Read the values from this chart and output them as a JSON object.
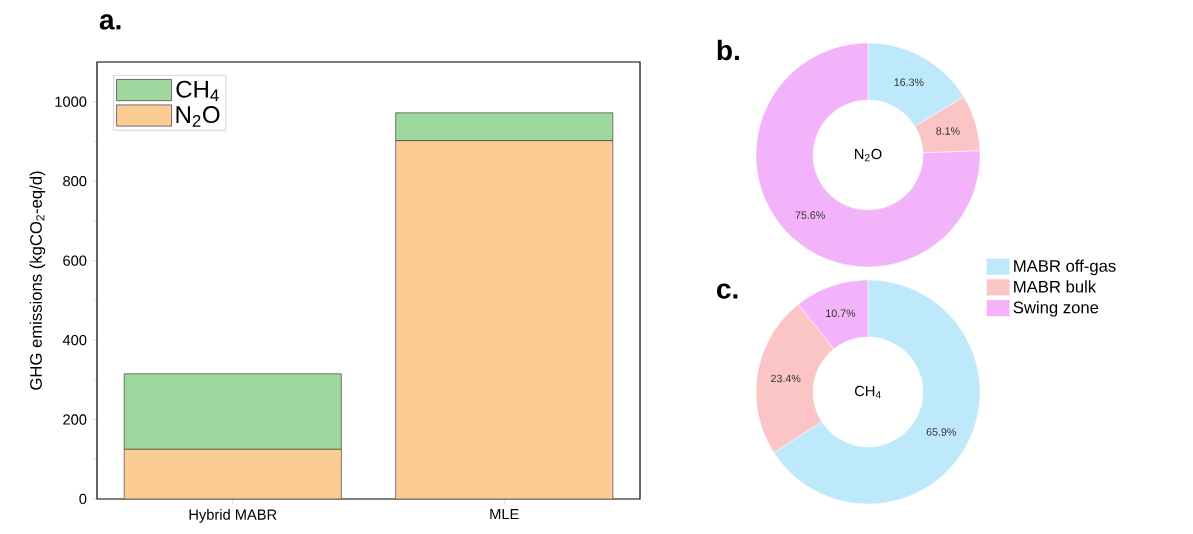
{
  "chart_data": [
    {
      "type": "bar",
      "title": "a.",
      "categories": [
        "Hybrid MABR",
        "MLE"
      ],
      "stacked": true,
      "ylabel": "GHG emissions (kgCO$_{2}$-eq/d)",
      "ylim": [
        0,
        1100
      ],
      "yticks": [
        0,
        200,
        400,
        600,
        800,
        1000
      ],
      "legend": "top left",
      "series": [
        {
          "name": "N$_{2}$O",
          "color": "#fdcc95",
          "values": [
            125,
            902
          ]
        },
        {
          "name": "CH$_{4}$",
          "color": "#9fd89e",
          "values": [
            190,
            70
          ]
        }
      ]
    },
    {
      "type": "donut",
      "title": "b.",
      "categories": [
        null,
        null,
        null
      ],
      "values": [
        16.3,
        8.1,
        75.6
      ],
      "colors": [
        "#bde9fb",
        "#fcc5c5",
        "#f3b3fb"
      ],
      "value_labels": [
        "16.3%",
        "8.1%",
        "75.6%"
      ],
      "annotations": [
        "N$_{2}$O"
      ]
    },
    {
      "type": "donut",
      "title": "c.",
      "categories": [
        "MABR off-gas",
        "MABR bulk",
        "Swing zone"
      ],
      "values": [
        65.9,
        23.4,
        10.7
      ],
      "colors": [
        "#bde9fb",
        "#fcc5c5",
        "#f3b3fb"
      ],
      "value_labels": [
        "65.9%",
        "23.4%",
        "10.7%"
      ],
      "annotations": [
        "CH$_{4}$"
      ],
      "legend": "right"
    }
  ]
}
